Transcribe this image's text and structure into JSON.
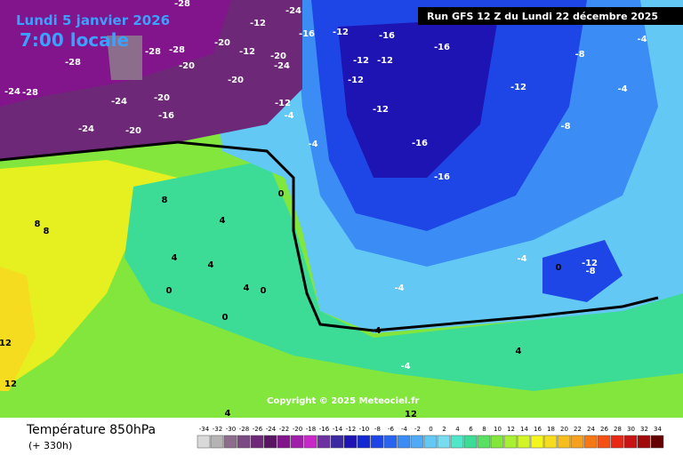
{
  "header": {
    "date": "Lundi 5 janvier 2026",
    "time": "7:00 locale",
    "run": "Run GFS 12 Z du Lundi 22 décembre 2025"
  },
  "footer": {
    "title": "Température 850hPa",
    "lead": "(+ 330h)",
    "copyright": "Copyright © 2025 Meteociel.fr"
  },
  "legend": {
    "values": [
      -34,
      -32,
      -30,
      -28,
      -26,
      -24,
      -22,
      -20,
      -18,
      -16,
      -14,
      -12,
      -10,
      -8,
      -6,
      -4,
      -2,
      0,
      2,
      4,
      6,
      8,
      10,
      12,
      14,
      16,
      18,
      20,
      22,
      24,
      26,
      28,
      30,
      32,
      34
    ],
    "colors": [
      "#d9d9d9",
      "#b4b4b4",
      "#8c6e8c",
      "#7a4a82",
      "#6e2878",
      "#5a1464",
      "#82148c",
      "#a01eaa",
      "#c828c8",
      "#6e32a0",
      "#3c28a0",
      "#1e14b4",
      "#1428d2",
      "#1e46e6",
      "#2864f0",
      "#3c8cf5",
      "#50aaf5",
      "#64c8f5",
      "#78dcf0",
      "#50e6c8",
      "#3cdc96",
      "#5ae164",
      "#82e63c",
      "#aaf032",
      "#d2f528",
      "#f5f51e",
      "#f5dc1e",
      "#f5be1e",
      "#f5a01e",
      "#f57814",
      "#f55014",
      "#e62814",
      "#c81414",
      "#a00a0a",
      "#640000"
    ]
  },
  "contour_labels": [
    -28,
    -24,
    -12,
    -16,
    -12,
    -16,
    -20,
    -28,
    -28,
    -20,
    -28,
    -24,
    -28,
    -24,
    -20,
    -16,
    -24,
    -20,
    -12,
    -20,
    -24,
    -20,
    -12,
    -12,
    -12,
    -12,
    -16,
    -12,
    -16,
    -16,
    -8,
    -4,
    -8,
    -4,
    -4,
    0,
    8,
    4,
    8,
    4,
    4,
    0,
    4,
    0,
    0,
    -4,
    -8,
    -12,
    -4,
    0,
    4,
    -4,
    12,
    12,
    8,
    4,
    12,
    4,
    -12,
    -4
  ]
}
